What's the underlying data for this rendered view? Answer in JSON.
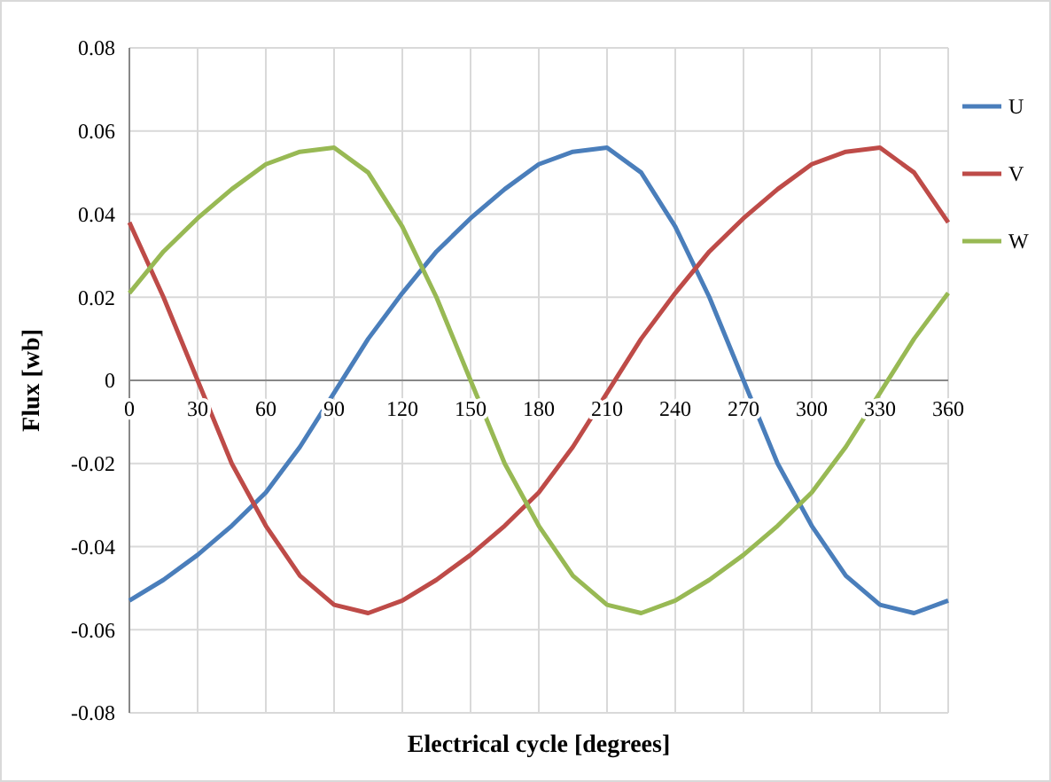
{
  "chart_data": {
    "type": "line",
    "xlabel": "Electrical cycle [degrees]",
    "ylabel": "Flux [wb]",
    "x": [
      0,
      15,
      30,
      45,
      60,
      75,
      90,
      105,
      120,
      135,
      150,
      165,
      180,
      195,
      210,
      225,
      240,
      255,
      270,
      285,
      300,
      315,
      330,
      345,
      360
    ],
    "series": [
      {
        "name": "U",
        "color": "#4a7ebb",
        "values": [
          -0.053,
          -0.048,
          -0.042,
          -0.035,
          -0.027,
          -0.016,
          -0.003,
          0.01,
          0.021,
          0.031,
          0.039,
          0.046,
          0.052,
          0.055,
          0.056,
          0.05,
          0.037,
          0.02,
          0.0,
          -0.02,
          -0.035,
          -0.047,
          -0.054,
          -0.056,
          -0.053
        ]
      },
      {
        "name": "V",
        "color": "#be4b48",
        "values": [
          0.038,
          0.02,
          0.0,
          -0.02,
          -0.035,
          -0.047,
          -0.054,
          -0.056,
          -0.053,
          -0.048,
          -0.042,
          -0.035,
          -0.027,
          -0.016,
          -0.003,
          0.01,
          0.021,
          0.031,
          0.039,
          0.046,
          0.052,
          0.055,
          0.056,
          0.05,
          0.038
        ]
      },
      {
        "name": "W",
        "color": "#98b954",
        "values": [
          0.021,
          0.031,
          0.039,
          0.046,
          0.052,
          0.055,
          0.056,
          0.05,
          0.037,
          0.02,
          0.0,
          -0.02,
          -0.035,
          -0.047,
          -0.054,
          -0.056,
          -0.053,
          -0.048,
          -0.042,
          -0.035,
          -0.027,
          -0.016,
          -0.003,
          0.01,
          0.021
        ]
      }
    ],
    "xlim": [
      0,
      360
    ],
    "xticks": [
      0,
      30,
      60,
      90,
      120,
      150,
      180,
      210,
      240,
      270,
      300,
      330,
      360
    ],
    "ylim": [
      -0.08,
      0.08
    ],
    "yticks": [
      {
        "value": -0.08,
        "label": "-0.08"
      },
      {
        "value": -0.06,
        "label": "-0.06"
      },
      {
        "value": -0.04,
        "label": "-0.04"
      },
      {
        "value": -0.02,
        "label": "-0.02"
      },
      0,
      {
        "value": 0.02,
        "label": "0.02"
      },
      {
        "value": 0.04,
        "label": "0.04"
      },
      {
        "value": 0.06,
        "label": "0.06"
      },
      {
        "value": 0.08,
        "label": "0.08"
      }
    ],
    "grid": true,
    "legend": "right",
    "marker": "none",
    "line_style": "solid"
  }
}
